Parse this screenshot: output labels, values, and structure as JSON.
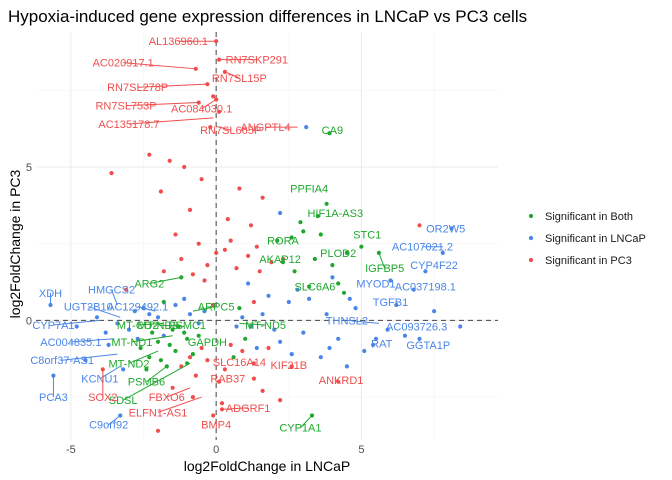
{
  "chart_data": {
    "type": "scatter",
    "title": "Hypoxia-induced gene expression differences in LNCaP vs PC3 cells",
    "xlabel": "log2FoldChange in LNCaP",
    "ylabel": "log2FoldChange in PC3",
    "xlim": [
      -6.2,
      9.7
    ],
    "ylim": [
      -3.9,
      9.4
    ],
    "x_ticks": [
      -5,
      0,
      5
    ],
    "y_ticks": [
      0,
      5
    ],
    "grid": true,
    "reference_lines": {
      "x": 0,
      "y": 0,
      "style": "dashed"
    },
    "legend_position": "right",
    "series": [
      {
        "name": "Significant in Both",
        "color": "#1fa82d",
        "points": [
          [
            3.0,
            2.9
          ],
          [
            2.1,
            2.6
          ],
          [
            2.6,
            2.7
          ],
          [
            3.4,
            2.0
          ],
          [
            4.0,
            1.8
          ],
          [
            3.2,
            1.1
          ],
          [
            4.5,
            2.2
          ],
          [
            5.0,
            2.4
          ],
          [
            5.6,
            2.2
          ],
          [
            3.8,
            3.8
          ],
          [
            3.5,
            3.4
          ],
          [
            2.7,
            1.6
          ],
          [
            4.2,
            1.2
          ],
          [
            3.9,
            6.1
          ],
          [
            4.4,
            0.9
          ],
          [
            2.9,
            3.2
          ],
          [
            3.6,
            2.8
          ],
          [
            2.3,
            1.9
          ],
          [
            -1.2,
            1.4
          ],
          [
            -1.8,
            0.6
          ],
          [
            -1.5,
            -0.3
          ],
          [
            -2.0,
            -0.7
          ],
          [
            -1.4,
            -1.0
          ],
          [
            -2.3,
            -1.2
          ],
          [
            -1.0,
            -0.6
          ],
          [
            -1.7,
            -1.5
          ],
          [
            -1.1,
            -0.4
          ],
          [
            -2.6,
            -0.9
          ],
          [
            -0.8,
            -1.1
          ],
          [
            -1.3,
            -0.2
          ],
          [
            -2.2,
            -0.4
          ],
          [
            -1.6,
            -0.8
          ],
          [
            -1.9,
            -1.3
          ],
          [
            -0.6,
            -0.5
          ],
          [
            -1.0,
            -1.4
          ],
          [
            -2.4,
            -1.6
          ],
          [
            0.8,
            0.4
          ],
          [
            1.0,
            -0.6
          ],
          [
            0.6,
            -1.2
          ],
          [
            3.3,
            -3.1
          ]
        ]
      },
      {
        "name": "Significant in LNCaP",
        "color": "#4a86e8",
        "points": [
          [
            8.1,
            3.0
          ],
          [
            7.8,
            2.2
          ],
          [
            7.2,
            1.6
          ],
          [
            6.8,
            1.0
          ],
          [
            6.2,
            0.5
          ],
          [
            5.9,
            -0.3
          ],
          [
            6.5,
            -0.5
          ],
          [
            7.0,
            -0.6
          ],
          [
            5.4,
            -0.8
          ],
          [
            5.5,
            -0.6
          ],
          [
            4.8,
            0.4
          ],
          [
            4.2,
            -0.6
          ],
          [
            3.8,
            0.2
          ],
          [
            3.0,
            -0.4
          ],
          [
            2.5,
            0.6
          ],
          [
            2.0,
            -0.3
          ],
          [
            1.6,
            0.2
          ],
          [
            1.2,
            -0.2
          ],
          [
            2.8,
            1.0
          ],
          [
            3.6,
            -1.2
          ],
          [
            4.5,
            -1.5
          ],
          [
            5.1,
            -1.0
          ],
          [
            2.2,
            -0.7
          ],
          [
            1.8,
            0.8
          ],
          [
            1.4,
            -0.9
          ],
          [
            0.9,
            0.1
          ],
          [
            0.7,
            -0.2
          ],
          [
            3.2,
            0.7
          ],
          [
            4.0,
            1.4
          ],
          [
            4.6,
            0.7
          ],
          [
            1.1,
            1.2
          ],
          [
            2.6,
            -1.1
          ],
          [
            3.9,
            -0.9
          ],
          [
            6.0,
            1.3
          ],
          [
            7.5,
            0.3
          ],
          [
            8.4,
            -0.2
          ],
          [
            3.1,
            6.3
          ],
          [
            2.2,
            3.5
          ],
          [
            -5.7,
            0.5
          ],
          [
            -4.1,
            0.1
          ],
          [
            -3.4,
            -0.1
          ],
          [
            -3.0,
            -0.3
          ],
          [
            -2.8,
            0.3
          ],
          [
            -3.7,
            -0.8
          ],
          [
            -4.5,
            -1.3
          ],
          [
            -5.6,
            -1.8
          ],
          [
            -3.2,
            -1.6
          ],
          [
            -3.3,
            -3.1
          ],
          [
            -2.5,
            0.4
          ],
          [
            -2.0,
            0.1
          ],
          [
            -1.4,
            0.5
          ],
          [
            -0.9,
            0.2
          ],
          [
            -0.6,
            -0.1
          ],
          [
            -1.8,
            -0.5
          ],
          [
            -2.7,
            -0.6
          ],
          [
            -3.8,
            -0.4
          ],
          [
            -4.8,
            -0.2
          ],
          [
            -2.3,
            0.2
          ],
          [
            -1.1,
            0.7
          ],
          [
            -0.4,
            0.3
          ]
        ]
      },
      {
        "name": "Significant in PC3",
        "color": "#f04e4e",
        "points": [
          [
            0.0,
            9.1
          ],
          [
            0.1,
            8.5
          ],
          [
            -0.7,
            8.2
          ],
          [
            0.3,
            8.1
          ],
          [
            -0.3,
            7.7
          ],
          [
            0.0,
            7.2
          ],
          [
            -0.1,
            7.3
          ],
          [
            -0.6,
            7.1
          ],
          [
            0.1,
            6.8
          ],
          [
            -0.2,
            6.3
          ],
          [
            -2.3,
            5.4
          ],
          [
            -1.6,
            5.2
          ],
          [
            -1.1,
            5.0
          ],
          [
            -3.6,
            4.8
          ],
          [
            -0.5,
            4.6
          ],
          [
            0.8,
            4.3
          ],
          [
            1.6,
            4.0
          ],
          [
            -1.9,
            4.2
          ],
          [
            -0.9,
            3.6
          ],
          [
            0.4,
            3.3
          ],
          [
            1.2,
            3.1
          ],
          [
            -1.4,
            2.8
          ],
          [
            -0.6,
            2.5
          ],
          [
            0.3,
            2.3
          ],
          [
            1.1,
            2.1
          ],
          [
            1.9,
            1.9
          ],
          [
            -1.2,
            2.0
          ],
          [
            -0.3,
            1.8
          ],
          [
            0.7,
            1.7
          ],
          [
            1.5,
            1.6
          ],
          [
            -1.8,
            1.6
          ],
          [
            -0.8,
            1.5
          ],
          [
            0.5,
            2.6
          ],
          [
            1.4,
            2.4
          ],
          [
            0.0,
            2.2
          ],
          [
            -0.4,
            1.3
          ],
          [
            2.3,
            2.0
          ],
          [
            7.0,
            3.1
          ],
          [
            -3.1,
            1.0
          ],
          [
            1.3,
            0.6
          ],
          [
            -0.1,
            0.5
          ],
          [
            0.5,
            -0.8
          ],
          [
            -0.5,
            -0.9
          ],
          [
            -0.3,
            -1.3
          ],
          [
            0.3,
            -1.6
          ],
          [
            -0.9,
            -1.2
          ],
          [
            -0.7,
            -1.8
          ],
          [
            0.1,
            -2.0
          ],
          [
            0.9,
            -1.0
          ],
          [
            1.3,
            -1.4
          ],
          [
            1.8,
            -0.9
          ],
          [
            -1.2,
            -1.5
          ],
          [
            -1.5,
            -2.2
          ],
          [
            -0.8,
            -2.5
          ],
          [
            0.2,
            -2.7
          ],
          [
            1.3,
            -1.9
          ],
          [
            2.6,
            -1.5
          ],
          [
            4.2,
            -2.0
          ],
          [
            0.2,
            -2.9
          ],
          [
            -0.1,
            -3.1
          ],
          [
            -2.0,
            -3.6
          ],
          [
            -3.9,
            -1.6
          ],
          [
            1.6,
            -2.3
          ],
          [
            2.2,
            -2.6
          ]
        ]
      }
    ],
    "annotations": [
      {
        "text": "AL136960.1",
        "x": 0.0,
        "y": 9.1,
        "lx": -1.3,
        "ly": 9.1,
        "color": "#f04e4e"
      },
      {
        "text": "RN7SKP291",
        "x": 0.1,
        "y": 8.5,
        "lx": 1.4,
        "ly": 8.5,
        "color": "#f04e4e"
      },
      {
        "text": "AC020917.1",
        "x": -0.7,
        "y": 8.2,
        "lx": -3.2,
        "ly": 8.4,
        "color": "#f04e4e"
      },
      {
        "text": "RN7SL15P",
        "x": 0.3,
        "y": 8.1,
        "lx": 0.8,
        "ly": 7.9,
        "color": "#f04e4e"
      },
      {
        "text": "RN7SL278P",
        "x": -0.3,
        "y": 7.7,
        "lx": -2.7,
        "ly": 7.6,
        "color": "#f04e4e"
      },
      {
        "text": "RN7SL753P",
        "x": -0.6,
        "y": 7.1,
        "lx": -3.1,
        "ly": 7.0,
        "color": "#f04e4e"
      },
      {
        "text": "AC084030.1",
        "x": 0.0,
        "y": 7.2,
        "lx": -0.5,
        "ly": 6.9,
        "color": "#f04e4e"
      },
      {
        "text": "AC135178.7",
        "x": -0.1,
        "y": 6.6,
        "lx": -3.0,
        "ly": 6.4,
        "color": "#f04e4e"
      },
      {
        "text": "RN7SL665P",
        "x": 0.1,
        "y": 6.3,
        "lx": 0.5,
        "ly": 6.2,
        "color": "#f04e4e"
      },
      {
        "text": "ANGPTL4",
        "x": 2.8,
        "y": 6.3,
        "lx": 1.7,
        "ly": 6.3,
        "color": "#f04e4e"
      },
      {
        "text": "CA9",
        "x": 3.9,
        "y": 6.1,
        "lx": 4.0,
        "ly": 6.2,
        "color": "#1fa82d"
      },
      {
        "text": "PPFIA4",
        "x": 3.4,
        "y": 4.3,
        "lx": 3.2,
        "ly": 4.3,
        "color": "#1fa82d"
      },
      {
        "text": "HIF1A-AS3",
        "x": 4.0,
        "y": 3.6,
        "lx": 4.1,
        "ly": 3.5,
        "color": "#1fa82d"
      },
      {
        "text": "STC1",
        "x": 5.1,
        "y": 2.9,
        "lx": 5.2,
        "ly": 2.8,
        "color": "#1fa82d"
      },
      {
        "text": "RORA",
        "x": 2.6,
        "y": 2.7,
        "lx": 2.3,
        "ly": 2.6,
        "color": "#1fa82d"
      },
      {
        "text": "PLOD2",
        "x": 4.3,
        "y": 2.3,
        "lx": 4.2,
        "ly": 2.2,
        "color": "#1fa82d"
      },
      {
        "text": "AKAP12",
        "x": 2.4,
        "y": 2.1,
        "lx": 2.2,
        "ly": 2.0,
        "color": "#1fa82d"
      },
      {
        "text": "IGFBP5",
        "x": 5.6,
        "y": 2.2,
        "lx": 5.8,
        "ly": 1.7,
        "color": "#1fa82d"
      },
      {
        "text": "ARG2",
        "x": -1.2,
        "y": 1.4,
        "lx": -2.3,
        "ly": 1.2,
        "color": "#1fa82d"
      },
      {
        "text": "SLC6A6",
        "x": 3.4,
        "y": 1.0,
        "lx": 3.4,
        "ly": 1.1,
        "color": "#1fa82d"
      },
      {
        "text": "OR2W5",
        "x": 8.1,
        "y": 3.0,
        "lx": 7.9,
        "ly": 3.0,
        "color": "#4a86e8"
      },
      {
        "text": "AC107021.2",
        "x": 7.8,
        "y": 2.4,
        "lx": 7.1,
        "ly": 2.4,
        "color": "#4a86e8"
      },
      {
        "text": "CYP4F22",
        "x": 7.2,
        "y": 1.6,
        "lx": 7.5,
        "ly": 1.8,
        "color": "#4a86e8"
      },
      {
        "text": "MYOD1",
        "x": 5.6,
        "y": 1.2,
        "lx": 5.5,
        "ly": 1.2,
        "color": "#4a86e8"
      },
      {
        "text": "AC037198.1",
        "x": 7.0,
        "y": 1.1,
        "lx": 7.2,
        "ly": 1.1,
        "color": "#4a86e8"
      },
      {
        "text": "TGFB1",
        "x": 6.0,
        "y": 0.6,
        "lx": 6.0,
        "ly": 0.6,
        "color": "#4a86e8"
      },
      {
        "text": "THNSL2",
        "x": 5.6,
        "y": -0.1,
        "lx": 4.5,
        "ly": 0.0,
        "color": "#4a86e8"
      },
      {
        "text": "AC093726.3",
        "x": 7.2,
        "y": -0.1,
        "lx": 6.9,
        "ly": -0.2,
        "color": "#4a86e8"
      },
      {
        "text": "RAT",
        "x": 5.4,
        "y": -0.8,
        "lx": 5.7,
        "ly": -0.75,
        "color": "#4a86e8"
      },
      {
        "text": "GGTA1P",
        "x": 7.1,
        "y": -0.6,
        "lx": 7.3,
        "ly": -0.8,
        "color": "#4a86e8"
      },
      {
        "text": "XDH",
        "x": -5.7,
        "y": 0.5,
        "lx": -5.7,
        "ly": 0.9,
        "color": "#4a86e8"
      },
      {
        "text": "HMGCS2",
        "x": -3.4,
        "y": 0.5,
        "lx": -3.6,
        "ly": 1.0,
        "color": "#4a86e8"
      },
      {
        "text": "UGT2B10",
        "x": -3.3,
        "y": 0.1,
        "lx": -4.4,
        "ly": 0.45,
        "color": "#4a86e8"
      },
      {
        "text": "AC129492.1",
        "x": -2.1,
        "y": 0.3,
        "lx": -2.7,
        "ly": 0.45,
        "color": "#4a86e8"
      },
      {
        "text": "CYP7A1",
        "x": -4.0,
        "y": 0.0,
        "lx": -5.6,
        "ly": -0.15,
        "color": "#4a86e8"
      },
      {
        "text": "AC004835.1",
        "x": -3.5,
        "y": -0.6,
        "lx": -5.0,
        "ly": -0.7,
        "color": "#4a86e8"
      },
      {
        "text": "C8orf37-AS1",
        "x": -3.4,
        "y": -1.1,
        "lx": -5.3,
        "ly": -1.3,
        "color": "#4a86e8"
      },
      {
        "text": "KCNU1",
        "x": -3.3,
        "y": -1.5,
        "lx": -4.0,
        "ly": -1.9,
        "color": "#4a86e8"
      },
      {
        "text": "PCA3",
        "x": -5.6,
        "y": -1.8,
        "lx": -5.6,
        "ly": -2.5,
        "color": "#4a86e8"
      },
      {
        "text": "C9orf92",
        "x": -3.3,
        "y": -3.1,
        "lx": -3.7,
        "ly": -3.4,
        "color": "#4a86e8"
      },
      {
        "text": "MT-CO2",
        "x": -1.8,
        "y": -0.1,
        "lx": -2.7,
        "ly": -0.15,
        "color": "#1fa82d"
      },
      {
        "text": "MT-ND3",
        "x": -1.1,
        "y": -0.2,
        "lx": -2.0,
        "ly": -0.15,
        "color": "#1fa82d"
      },
      {
        "text": "MT-ND1",
        "x": -1.5,
        "y": -0.5,
        "lx": -2.9,
        "ly": -0.7,
        "color": "#1fa82d"
      },
      {
        "text": "PSMC1",
        "x": -1.3,
        "y": -0.1,
        "lx": -1.0,
        "ly": -0.15,
        "color": "#1fa82d"
      },
      {
        "text": "ARPC5",
        "x": -0.8,
        "y": 0.3,
        "lx": 0.0,
        "ly": 0.45,
        "color": "#1fa82d"
      },
      {
        "text": "MT-ND5",
        "x": 0.8,
        "y": -0.1,
        "lx": 1.7,
        "ly": -0.15,
        "color": "#1fa82d"
      },
      {
        "text": "MT-ND2",
        "x": -2.0,
        "y": -1.0,
        "lx": -3.0,
        "ly": -1.4,
        "color": "#1fa82d"
      },
      {
        "text": "PSMB6",
        "x": -1.7,
        "y": -1.5,
        "lx": -2.4,
        "ly": -2.0,
        "color": "#1fa82d"
      },
      {
        "text": "SDSL",
        "x": -0.9,
        "y": -1.4,
        "lx": -3.2,
        "ly": -2.6,
        "color": "#1fa82d"
      },
      {
        "text": "GAPDH",
        "x": -0.3,
        "y": -0.7,
        "lx": -0.3,
        "ly": -0.7,
        "color": "#1fa82d"
      },
      {
        "text": "RAB37",
        "x": 0.3,
        "y": -1.8,
        "lx": 0.4,
        "ly": -1.9,
        "color": "#f04e4e"
      },
      {
        "text": "SLC16A14",
        "x": 0.7,
        "y": -1.3,
        "lx": 0.8,
        "ly": -1.35,
        "color": "#f04e4e"
      },
      {
        "text": "KIF21B",
        "x": 2.3,
        "y": -1.5,
        "lx": 2.5,
        "ly": -1.45,
        "color": "#f04e4e"
      },
      {
        "text": "ANKRD1",
        "x": 4.2,
        "y": -2.0,
        "lx": 4.3,
        "ly": -1.95,
        "color": "#f04e4e"
      },
      {
        "text": "SOX2",
        "x": -3.9,
        "y": -1.6,
        "lx": -3.9,
        "ly": -2.5,
        "color": "#f04e4e"
      },
      {
        "text": "FBXO6",
        "x": -0.9,
        "y": -2.2,
        "lx": -1.7,
        "ly": -2.5,
        "color": "#f04e4e"
      },
      {
        "text": "ELFN1-AS1",
        "x": -0.5,
        "y": -2.5,
        "lx": -2.0,
        "ly": -3.0,
        "color": "#f04e4e"
      },
      {
        "text": "ADGRF1",
        "x": 0.2,
        "y": -2.9,
        "lx": 1.1,
        "ly": -2.85,
        "color": "#f04e4e"
      },
      {
        "text": "BMP4",
        "x": -0.1,
        "y": -3.1,
        "lx": 0.0,
        "ly": -3.4,
        "color": "#f04e4e"
      },
      {
        "text": "CYP1A1",
        "x": 3.3,
        "y": -3.1,
        "lx": 2.9,
        "ly": -3.5,
        "color": "#1fa82d"
      }
    ]
  }
}
